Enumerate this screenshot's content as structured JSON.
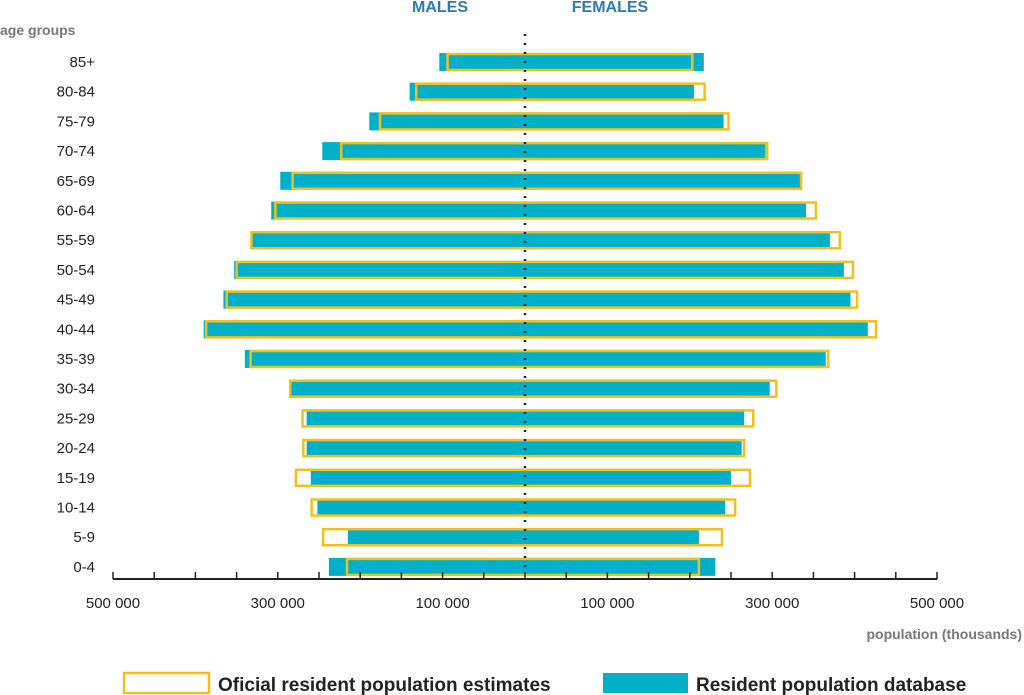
{
  "chart_data": {
    "type": "bar",
    "subtype": "population-pyramid",
    "left_header": "MALES",
    "right_header": "FEMALES",
    "y_axis_title": "age groups",
    "x_axis_title": "population (thousands)",
    "x_tick_labels": [
      "500 000",
      "300 000",
      "100 000",
      "100 000",
      "300 000",
      "500 000"
    ],
    "x_ticks": [
      -500000,
      -300000,
      -100000,
      100000,
      300000,
      500000
    ],
    "xlim": [
      -500000,
      500000
    ],
    "categories": [
      "85+",
      "80-84",
      "75-79",
      "70-74",
      "65-69",
      "60-64",
      "55-59",
      "50-54",
      "45-49",
      "40-44",
      "35-39",
      "30-34",
      "25-29",
      "20-24",
      "15-19",
      "10-14",
      "5-9",
      "0-4"
    ],
    "series": [
      {
        "name": "Oficial resident population estimates",
        "style": "outline",
        "color": "#f2c01e",
        "males": [
          94000,
          132000,
          176000,
          223000,
          282000,
          303000,
          332000,
          350000,
          362000,
          387000,
          333000,
          285000,
          270000,
          269000,
          278000,
          259000,
          245000,
          216000
        ],
        "females": [
          203000,
          218000,
          247000,
          294000,
          335000,
          353000,
          382000,
          398000,
          403000,
          426000,
          368000,
          305000,
          277000,
          266000,
          273000,
          255000,
          239000,
          211000
        ]
      },
      {
        "name": "Resident population database",
        "style": "fill",
        "color": "#00b0c8",
        "males": [
          104000,
          140000,
          189000,
          246000,
          297000,
          308000,
          333000,
          353000,
          366000,
          390000,
          340000,
          285000,
          265000,
          265000,
          260000,
          252000,
          215000,
          238000
        ],
        "females": [
          217000,
          205000,
          241000,
          292000,
          335000,
          341000,
          370000,
          387000,
          395000,
          416000,
          365000,
          297000,
          266000,
          263000,
          250000,
          243000,
          211000,
          231000
        ]
      }
    ]
  }
}
